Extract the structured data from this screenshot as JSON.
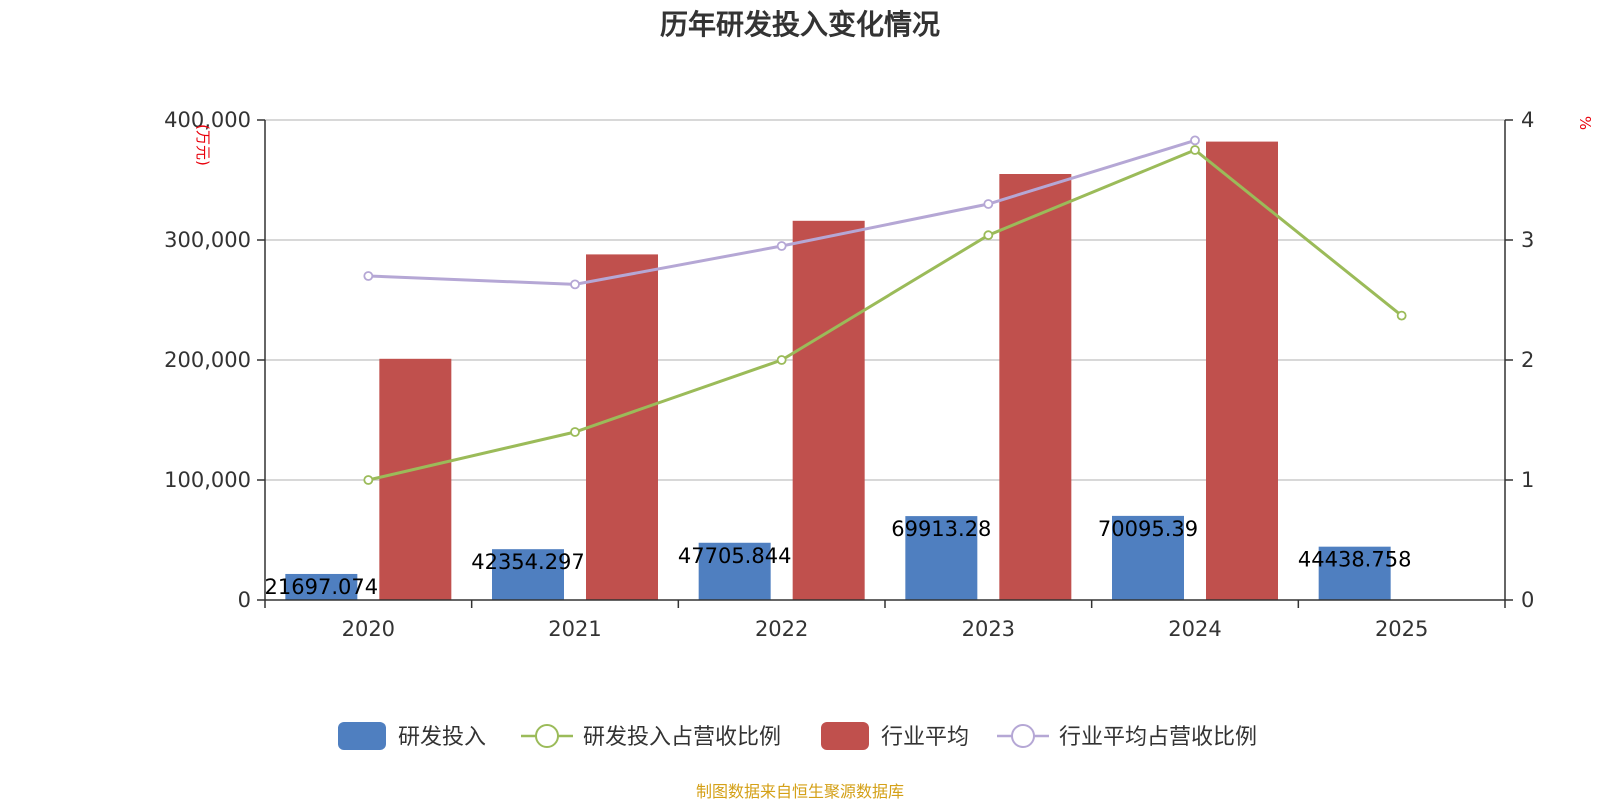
{
  "chart_data": {
    "type": "bar",
    "title": "历年研发投入变化情况",
    "categories": [
      "2020",
      "2021",
      "2022",
      "2023",
      "2024",
      "2025"
    ],
    "y_left": {
      "unit": "(万元)",
      "ylim": [
        0,
        400000
      ],
      "ticks": [
        0,
        100000,
        200000,
        300000,
        400000
      ],
      "tick_labels": [
        "0",
        "100,000",
        "200,000",
        "300,000",
        "400,000"
      ]
    },
    "y_right": {
      "unit": "%",
      "ylim": [
        0,
        4
      ],
      "ticks": [
        0,
        1,
        2,
        3,
        4
      ],
      "tick_labels": [
        "0",
        "1",
        "2",
        "3",
        "4"
      ]
    },
    "series": [
      {
        "name": "研发投入",
        "kind": "bar",
        "axis": "left",
        "color": "#4f7fc0",
        "values": [
          21697.074,
          42354.297,
          47705.844,
          69913.28,
          70095.39,
          44438.758
        ],
        "labels": [
          "21697.074",
          "42354.297",
          "47705.844",
          "69913.28",
          "70095.39",
          "44438.758"
        ]
      },
      {
        "name": "研发投入占营收比例",
        "kind": "line",
        "axis": "right",
        "color": "#9bbb59",
        "values": [
          1.0,
          1.4,
          2.0,
          3.04,
          3.75,
          2.37
        ]
      },
      {
        "name": "行业平均",
        "kind": "bar",
        "axis": "left",
        "color": "#c0504d",
        "values": [
          201000,
          288000,
          316000,
          355000,
          382000,
          null
        ]
      },
      {
        "name": "行业平均占营收比例",
        "kind": "line",
        "axis": "right",
        "color": "#b5a7d5",
        "values": [
          2.7,
          2.63,
          2.95,
          3.3,
          3.83,
          null
        ]
      }
    ],
    "legend_position": "bottom",
    "source": "制图数据来自恒生聚源数据库"
  }
}
